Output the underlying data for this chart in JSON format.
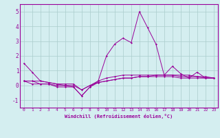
{
  "xlabel": "Windchill (Refroidissement éolien,°C)",
  "x": [
    0,
    1,
    2,
    3,
    4,
    5,
    6,
    7,
    8,
    9,
    10,
    11,
    12,
    13,
    14,
    15,
    16,
    17,
    18,
    19,
    20,
    21,
    22,
    23
  ],
  "line1": [
    1.5,
    0.9,
    0.3,
    0.2,
    0.1,
    0.0,
    -0.1,
    -0.7,
    -0.1,
    0.3,
    2.0,
    2.8,
    3.2,
    2.9,
    5.0,
    3.9,
    2.8,
    0.7,
    1.3,
    0.8,
    0.5,
    0.9,
    0.5,
    0.5
  ],
  "line2": [
    0.3,
    0.3,
    0.3,
    0.2,
    0.1,
    0.1,
    0.1,
    -0.3,
    0.0,
    0.3,
    0.5,
    0.6,
    0.7,
    0.7,
    0.7,
    0.7,
    0.7,
    0.7,
    0.7,
    0.7,
    0.7,
    0.6,
    0.6,
    0.5
  ],
  "line3": [
    0.3,
    0.3,
    0.1,
    0.1,
    -0.1,
    -0.1,
    -0.1,
    -0.7,
    -0.1,
    0.2,
    0.3,
    0.4,
    0.5,
    0.5,
    0.6,
    0.6,
    0.6,
    0.6,
    0.6,
    0.5,
    0.5,
    0.5,
    0.5,
    0.5
  ],
  "line4": [
    0.3,
    0.1,
    0.1,
    0.1,
    0.0,
    0.0,
    0.0,
    -0.3,
    0.0,
    0.2,
    0.3,
    0.4,
    0.5,
    0.5,
    0.6,
    0.6,
    0.7,
    0.7,
    0.7,
    0.6,
    0.6,
    0.6,
    0.5,
    0.5
  ],
  "line_color": "#990099",
  "bg_color": "#d4eef0",
  "grid_color": "#aacccc",
  "ylim": [
    -1.5,
    5.5
  ],
  "yticks": [
    -1,
    0,
    1,
    2,
    3,
    4,
    5
  ]
}
